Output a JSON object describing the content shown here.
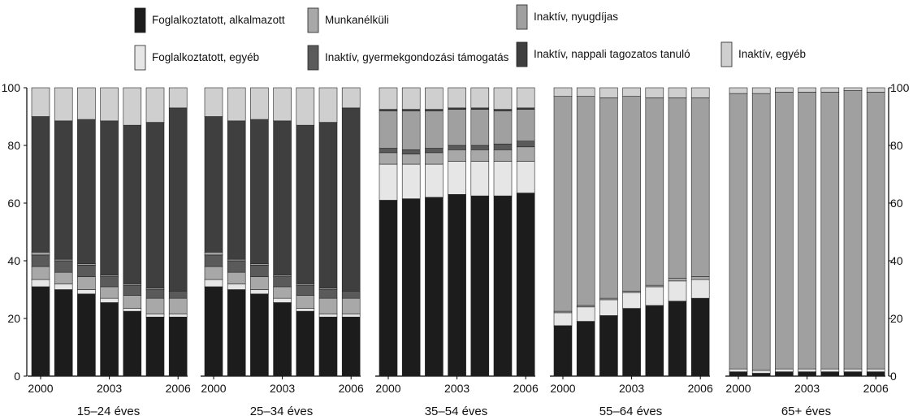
{
  "chart_data": {
    "type": "bar",
    "stacked": true,
    "y_axis": {
      "ticks": [
        "0",
        "20",
        "40",
        "60",
        "80",
        "100"
      ],
      "ylim": [
        0,
        100
      ],
      "sides": "left-and-right"
    },
    "x_tick_labels": [
      "2000",
      "2003",
      "2006"
    ],
    "years": [
      2000,
      2001,
      2002,
      2003,
      2004,
      2005,
      2006
    ],
    "legend": [
      {
        "name": "Foglalkoztatott, alkalmazott",
        "color": "#1c1c1c"
      },
      {
        "name": "Foglalkoztatott, egyéb",
        "color": "#e6e6e6"
      },
      {
        "name": "Munkanélküli",
        "color": "#a8a8a8"
      },
      {
        "name": "Inaktív, gyermekgondozási támogatás",
        "color": "#5a5a5a"
      },
      {
        "name": "Inaktív, nyugdíjas",
        "color": "#a0a0a0"
      },
      {
        "name": "Inaktív, nappali tagozatos tanuló",
        "color": "#3f3f3f"
      },
      {
        "name": "Inaktív, egyéb",
        "color": "#cfcfcf"
      }
    ],
    "panels": [
      {
        "label": "15–24 éves",
        "series": [
          {
            "name": "Foglalkoztatott, alkalmazott",
            "values": [
              31,
              30,
              28.5,
              25.5,
              22.5,
              20.5,
              20.5
            ]
          },
          {
            "name": "Foglalkoztatott, egyéb",
            "values": [
              2.5,
              2,
              1.5,
              1.5,
              1,
              1,
              1
            ]
          },
          {
            "name": "Munkanélküli",
            "values": [
              4.5,
              4,
              4.5,
              4,
              4.5,
              5.5,
              5.5
            ]
          },
          {
            "name": "Inaktív, gyermekgondozási támogatás",
            "values": [
              4,
              4,
              4,
              3.5,
              3.5,
              3,
              2.5
            ]
          },
          {
            "name": "Inaktív, nyugdíjas",
            "values": [
              1,
              0.5,
              0.5,
              0.5,
              0.5,
              0.5,
              0
            ]
          },
          {
            "name": "Inaktív, nappali tagozatos tanuló",
            "values": [
              47,
              48,
              50,
              53.5,
              55,
              57.5,
              63.5
            ]
          },
          {
            "name": "Inaktív, egyéb",
            "values": [
              10,
              11.5,
              11,
              11.5,
              13,
              12,
              7
            ]
          }
        ]
      },
      {
        "label": "25–34 éves",
        "series": [
          {
            "name": "Foglalkoztatott, alkalmazott",
            "values": [
              31,
              30,
              28.5,
              25.5,
              22.5,
              20.5,
              20.5
            ]
          },
          {
            "name": "Foglalkoztatott, egyéb",
            "values": [
              2.5,
              2,
              1.5,
              1.5,
              1,
              1,
              1
            ]
          },
          {
            "name": "Munkanélküli",
            "values": [
              4.5,
              4,
              4.5,
              4,
              4.5,
              5.5,
              5.5
            ]
          },
          {
            "name": "Inaktív, gyermekgondozási támogatás",
            "values": [
              4,
              4,
              4,
              3.5,
              3.5,
              3,
              2.5
            ]
          },
          {
            "name": "Inaktív, nyugdíjas",
            "values": [
              1,
              0.5,
              0.5,
              0.5,
              0.5,
              0.5,
              0
            ]
          },
          {
            "name": "Inaktív, nappali tagozatos tanuló",
            "values": [
              47,
              48,
              50,
              53.5,
              55,
              57.5,
              63.5
            ]
          },
          {
            "name": "Inaktív, egyéb",
            "values": [
              10,
              11.5,
              11,
              11.5,
              13,
              12,
              7
            ]
          }
        ]
      },
      {
        "label": "35–54 éves",
        "series": [
          {
            "name": "Foglalkoztatott, alkalmazott",
            "values": [
              61,
              61.5,
              62,
              63,
              62.5,
              62.5,
              63.5
            ]
          },
          {
            "name": "Foglalkoztatott, egyéb",
            "values": [
              12.5,
              12,
              11.5,
              11.5,
              12,
              12,
              11
            ]
          },
          {
            "name": "Munkanélküli",
            "values": [
              4,
              3.5,
              4,
              4,
              4,
              4,
              5
            ]
          },
          {
            "name": "Inaktív, gyermekgondozási támogatás",
            "values": [
              1.5,
              1.5,
              1.5,
              1.5,
              1.5,
              2,
              2
            ]
          },
          {
            "name": "Inaktív, nyugdíjas",
            "values": [
              13,
              13.5,
              13,
              12.5,
              12.5,
              11.5,
              11
            ]
          },
          {
            "name": "Inaktív, nappali tagozatos tanuló",
            "values": [
              0.5,
              0.5,
              0.5,
              0.5,
              0.5,
              0.5,
              0.5
            ]
          },
          {
            "name": "Inaktív, egyéb",
            "values": [
              7.5,
              7.5,
              7.5,
              7,
              7,
              7.5,
              7
            ]
          }
        ]
      },
      {
        "label": "55–64 éves",
        "series": [
          {
            "name": "Foglalkoztatott, alkalmazott",
            "values": [
              17.5,
              19,
              21,
              23.5,
              24.5,
              26,
              27
            ]
          },
          {
            "name": "Foglalkoztatott, egyéb",
            "values": [
              4.5,
              5,
              5.5,
              5.5,
              6.5,
              7,
              6.5
            ]
          },
          {
            "name": "Munkanélküli",
            "values": [
              0.5,
              0.5,
              0.5,
              0.5,
              0.5,
              1,
              1
            ]
          },
          {
            "name": "Inaktív, gyermekgondozási támogatás",
            "values": [
              0,
              0,
              0,
              0,
              0,
              0,
              0
            ]
          },
          {
            "name": "Inaktív, nyugdíjas",
            "values": [
              74.5,
              72.5,
              69.5,
              67.5,
              65,
              62.5,
              62
            ]
          },
          {
            "name": "Inaktív, nappali tagozatos tanuló",
            "values": [
              0,
              0,
              0,
              0,
              0,
              0,
              0
            ]
          },
          {
            "name": "Inaktív, egyéb",
            "values": [
              3,
              3,
              3.5,
              3,
              3.5,
              3.5,
              3.5
            ]
          }
        ]
      },
      {
        "label": "65+ éves",
        "series": [
          {
            "name": "Foglalkoztatott, alkalmazott",
            "values": [
              1.5,
              1,
              1.5,
              1.5,
              1.5,
              1.5,
              1.5
            ]
          },
          {
            "name": "Foglalkoztatott, egyéb",
            "values": [
              1,
              1,
              1,
              1,
              1,
              1,
              1
            ]
          },
          {
            "name": "Munkanélküli",
            "values": [
              0,
              0,
              0,
              0,
              0,
              0,
              0
            ]
          },
          {
            "name": "Inaktív, gyermekgondozási támogatás",
            "values": [
              0,
              0,
              0,
              0,
              0,
              0,
              0
            ]
          },
          {
            "name": "Inaktív, nyugdíjas",
            "values": [
              95.5,
              96,
              96,
              96,
              96,
              96.5,
              96
            ]
          },
          {
            "name": "Inaktív, nappali tagozatos tanuló",
            "values": [
              0,
              0,
              0,
              0,
              0,
              0,
              0
            ]
          },
          {
            "name": "Inaktív, egyéb",
            "values": [
              2,
              2,
              1.5,
              1.5,
              1.5,
              1,
              1.5
            ]
          }
        ]
      }
    ]
  }
}
